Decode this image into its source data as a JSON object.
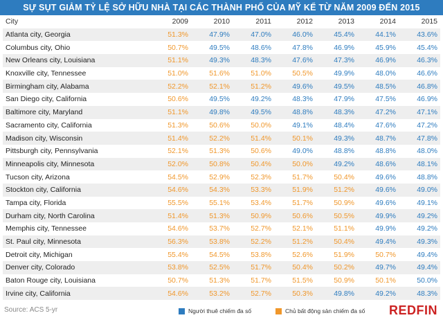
{
  "colors": {
    "renter": "#2e7cbf",
    "owner": "#f0972b",
    "header_bg": "#2e7cbf"
  },
  "chart_data": {
    "type": "table",
    "title": "SỰ SỤT GIẢM TỶ LỆ SỞ HỮU NHÀ TẠI CÁC THÀNH PHỐ CỦA MỸ KỂ TỪ NĂM 2009 ĐẾN 2015",
    "city_header": "City",
    "years": [
      "2009",
      "2010",
      "2011",
      "2012",
      "2013",
      "2014",
      "2015"
    ],
    "rows": [
      {
        "city": "Atlanta city, Georgia",
        "values": [
          "51.3%",
          "47.9%",
          "47.0%",
          "46.0%",
          "45.4%",
          "44.1%",
          "43.6%"
        ],
        "owner": [
          true,
          false,
          false,
          false,
          false,
          false,
          false
        ]
      },
      {
        "city": "Columbus city, Ohio",
        "values": [
          "50.7%",
          "49.5%",
          "48.6%",
          "47.8%",
          "46.9%",
          "45.9%",
          "45.4%"
        ],
        "owner": [
          true,
          false,
          false,
          false,
          false,
          false,
          false
        ]
      },
      {
        "city": "New Orleans city, Louisiana",
        "values": [
          "51.1%",
          "49.3%",
          "48.3%",
          "47.6%",
          "47.3%",
          "46.9%",
          "46.3%"
        ],
        "owner": [
          true,
          false,
          false,
          false,
          false,
          false,
          false
        ]
      },
      {
        "city": "Knoxville city, Tennessee",
        "values": [
          "51.0%",
          "51.6%",
          "51.0%",
          "50.5%",
          "49.9%",
          "48.0%",
          "46.6%"
        ],
        "owner": [
          true,
          true,
          true,
          true,
          false,
          false,
          false
        ]
      },
      {
        "city": "Birmingham city, Alabama",
        "values": [
          "52.2%",
          "52.1%",
          "51.2%",
          "49.6%",
          "49.5%",
          "48.5%",
          "46.8%"
        ],
        "owner": [
          true,
          true,
          true,
          false,
          false,
          false,
          false
        ]
      },
      {
        "city": "San Diego city, California",
        "values": [
          "50.6%",
          "49.5%",
          "49.2%",
          "48.3%",
          "47.9%",
          "47.5%",
          "46.9%"
        ],
        "owner": [
          true,
          false,
          false,
          false,
          false,
          false,
          false
        ]
      },
      {
        "city": "Baltimore city, Maryland",
        "values": [
          "51.1%",
          "49.8%",
          "49.5%",
          "48.8%",
          "48.3%",
          "47.2%",
          "47.1%"
        ],
        "owner": [
          true,
          false,
          false,
          false,
          false,
          false,
          false
        ]
      },
      {
        "city": "Sacramento city, California",
        "values": [
          "51.3%",
          "50.6%",
          "50.0%",
          "49.1%",
          "48.4%",
          "47.6%",
          "47.2%"
        ],
        "owner": [
          true,
          true,
          true,
          false,
          false,
          false,
          false
        ]
      },
      {
        "city": "Madison city, Wisconsin",
        "values": [
          "51.4%",
          "52.2%",
          "51.4%",
          "50.1%",
          "49.3%",
          "48.7%",
          "47.8%"
        ],
        "owner": [
          true,
          true,
          true,
          true,
          false,
          false,
          false
        ]
      },
      {
        "city": "Pittsburgh city, Pennsylvania",
        "values": [
          "52.1%",
          "51.3%",
          "50.6%",
          "49.0%",
          "48.8%",
          "48.8%",
          "48.0%"
        ],
        "owner": [
          true,
          true,
          true,
          false,
          false,
          false,
          false
        ]
      },
      {
        "city": "Minneapolis city, Minnesota",
        "values": [
          "52.0%",
          "50.8%",
          "50.4%",
          "50.0%",
          "49.2%",
          "48.6%",
          "48.1%"
        ],
        "owner": [
          true,
          true,
          true,
          true,
          false,
          false,
          false
        ]
      },
      {
        "city": "Tucson city, Arizona",
        "values": [
          "54.5%",
          "52.9%",
          "52.3%",
          "51.7%",
          "50.4%",
          "49.6%",
          "48.8%"
        ],
        "owner": [
          true,
          true,
          true,
          true,
          true,
          false,
          false
        ]
      },
      {
        "city": "Stockton city, California",
        "values": [
          "54.6%",
          "54.3%",
          "53.3%",
          "51.9%",
          "51.2%",
          "49.6%",
          "49.0%"
        ],
        "owner": [
          true,
          true,
          true,
          true,
          true,
          false,
          false
        ]
      },
      {
        "city": "Tampa city, Florida",
        "values": [
          "55.5%",
          "55.1%",
          "53.4%",
          "51.7%",
          "50.9%",
          "49.6%",
          "49.1%"
        ],
        "owner": [
          true,
          true,
          true,
          true,
          true,
          false,
          false
        ]
      },
      {
        "city": "Durham city, North Carolina",
        "values": [
          "51.4%",
          "51.3%",
          "50.9%",
          "50.6%",
          "50.5%",
          "49.9%",
          "49.2%"
        ],
        "owner": [
          true,
          true,
          true,
          true,
          true,
          false,
          false
        ]
      },
      {
        "city": "Memphis city, Tennessee",
        "values": [
          "54.6%",
          "53.7%",
          "52.7%",
          "52.1%",
          "51.1%",
          "49.9%",
          "49.2%"
        ],
        "owner": [
          true,
          true,
          true,
          true,
          true,
          false,
          false
        ]
      },
      {
        "city": "St. Paul city, Minnesota",
        "values": [
          "56.3%",
          "53.8%",
          "52.2%",
          "51.2%",
          "50.4%",
          "49.4%",
          "49.3%"
        ],
        "owner": [
          true,
          true,
          true,
          true,
          true,
          false,
          false
        ]
      },
      {
        "city": "Detroit city, Michigan",
        "values": [
          "55.4%",
          "54.5%",
          "53.8%",
          "52.6%",
          "51.9%",
          "50.7%",
          "49.4%"
        ],
        "owner": [
          true,
          true,
          true,
          true,
          true,
          true,
          false
        ]
      },
      {
        "city": "Denver city, Colorado",
        "values": [
          "53.8%",
          "52.5%",
          "51.7%",
          "50.4%",
          "50.2%",
          "49.7%",
          "49.4%"
        ],
        "owner": [
          true,
          true,
          true,
          true,
          true,
          false,
          false
        ]
      },
      {
        "city": "Baton Rouge city, Louisiana",
        "values": [
          "50.7%",
          "51.3%",
          "51.7%",
          "51.5%",
          "50.9%",
          "50.1%",
          "50.0%"
        ],
        "owner": [
          true,
          true,
          true,
          true,
          true,
          true,
          false
        ]
      },
      {
        "city": "Irvine city, California",
        "values": [
          "54.6%",
          "53.2%",
          "52.7%",
          "50.3%",
          "49.8%",
          "49.2%",
          "48.3%"
        ],
        "owner": [
          true,
          true,
          true,
          true,
          false,
          false,
          false
        ]
      }
    ],
    "legend": {
      "renter": "Người thuê chiếm đa số",
      "owner": "Chủ bất động sản chiếm đa số"
    }
  },
  "footer": {
    "source": "Source: ACS 5-yr",
    "brand": "REDFIN"
  }
}
